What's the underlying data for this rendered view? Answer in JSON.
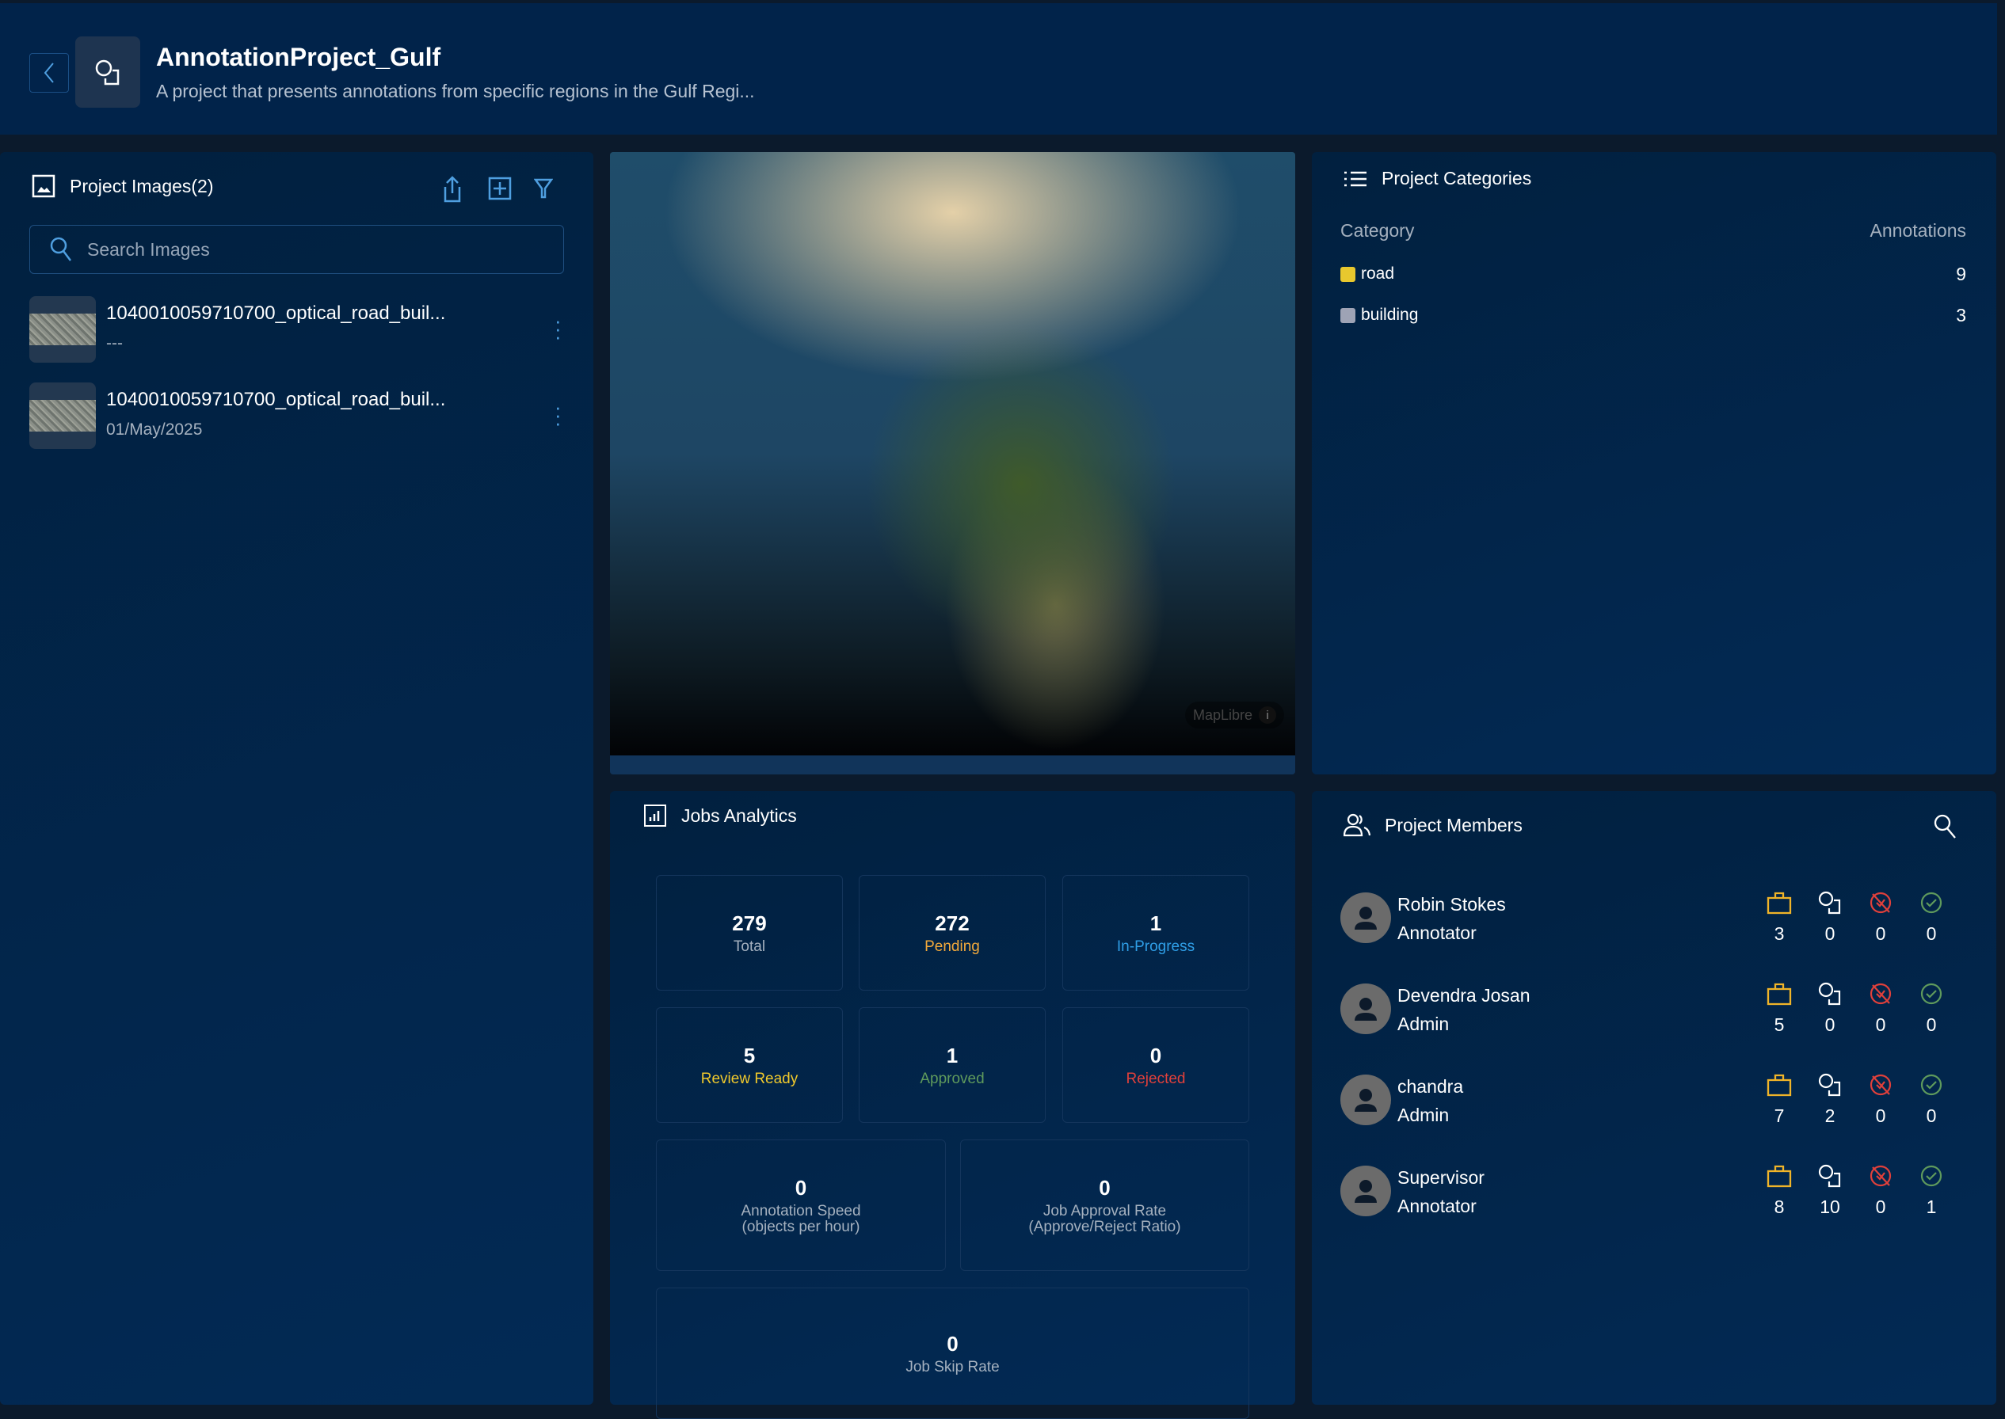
{
  "header": {
    "title": "AnnotationProject_Gulf",
    "subtitle": "A project that presents annotations from specific regions in the Gulf Regi..."
  },
  "images": {
    "title": "Project Images(2)",
    "search_placeholder": "Search Images",
    "items": [
      {
        "name": "1040010059710700_optical_road_buil...",
        "sub": "---"
      },
      {
        "name": "1040010059710700_optical_road_buil...",
        "sub": "01/May/2025"
      }
    ]
  },
  "map": {
    "attribution": "MapLibre"
  },
  "categories": {
    "title": "Project Categories",
    "col_category": "Category",
    "col_annotations": "Annotations",
    "items": [
      {
        "name": "road",
        "count": "9",
        "color": "#e8c82e"
      },
      {
        "name": "building",
        "count": "3",
        "color": "#9ea3b5"
      }
    ]
  },
  "jobs": {
    "title": "Jobs Analytics",
    "cards": [
      {
        "value": "279",
        "label": "Total",
        "color": "#a5b1bf"
      },
      {
        "value": "272",
        "label": "Pending",
        "color": "#f2a93b"
      },
      {
        "value": "1",
        "label": "In-Progress",
        "color": "#2f9ee6"
      },
      {
        "value": "5",
        "label": "Review Ready",
        "color": "#f0c92c"
      },
      {
        "value": "1",
        "label": "Approved",
        "color": "#5f9a5c"
      },
      {
        "value": "0",
        "label": "Rejected",
        "color": "#e0403b"
      },
      {
        "value": "0",
        "label": "Annotation Speed",
        "label2": "(objects per hour)"
      },
      {
        "value": "0",
        "label": "Job Approval Rate",
        "label2": "(Approve/Reject Ratio)"
      },
      {
        "value": "0",
        "label": "Job Skip Rate"
      }
    ]
  },
  "members": {
    "title": "Project Members",
    "items": [
      {
        "name": "Robin Stokes",
        "role": "Annotator",
        "stats": [
          "3",
          "0",
          "0",
          "0"
        ]
      },
      {
        "name": "Devendra Josan",
        "role": "Admin",
        "stats": [
          "5",
          "0",
          "0",
          "0"
        ]
      },
      {
        "name": "chandra",
        "role": "Admin",
        "stats": [
          "7",
          "2",
          "0",
          "0"
        ]
      },
      {
        "name": "Supervisor",
        "role": "Annotator",
        "stats": [
          "8",
          "10",
          "0",
          "1"
        ]
      }
    ]
  }
}
